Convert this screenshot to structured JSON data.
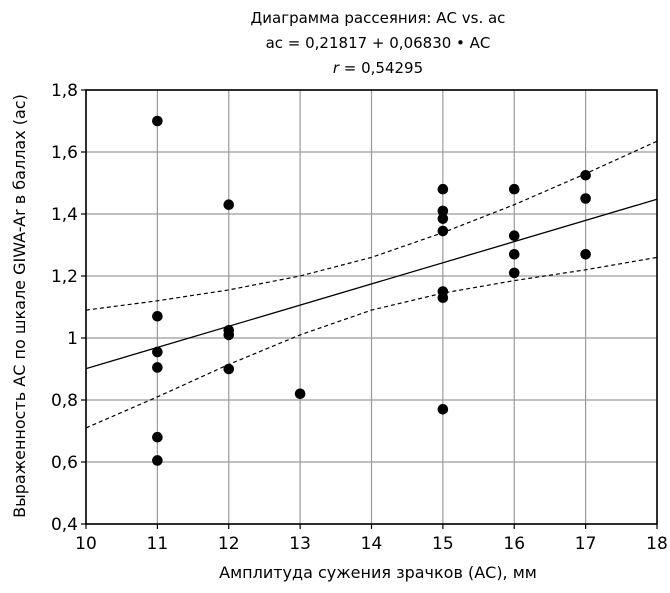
{
  "chart_data": {
    "type": "scatter",
    "title": "Диаграмма рассеяния: АС vs. ас",
    "subtitle_equation": "ас = 0,21817 + 0,06830 • АС",
    "subtitle_r_label": "r",
    "subtitle_r_value": " = 0,54295",
    "xlabel": "Амплитуда сужения зрачков (АС), мм",
    "ylabel": "Выраженность АС по шкале GIWA-Ar в баллах (ас)",
    "xlim": [
      10,
      18
    ],
    "ylim": [
      0.4,
      1.8
    ],
    "x_ticks": [
      10,
      11,
      12,
      13,
      14,
      15,
      16,
      17,
      18
    ],
    "x_tick_labels": [
      "10",
      "11",
      "12",
      "13",
      "14",
      "15",
      "16",
      "17",
      "18"
    ],
    "y_ticks": [
      0.4,
      0.6,
      0.8,
      1.0,
      1.2,
      1.4,
      1.6,
      1.8
    ],
    "y_tick_labels": [
      "0,4",
      "0,6",
      "0,8",
      "1",
      "1,2",
      "1,4",
      "1,6",
      "1,8"
    ],
    "grid": true,
    "points": [
      {
        "x": 11,
        "y": 1.7
      },
      {
        "x": 11,
        "y": 1.07
      },
      {
        "x": 11,
        "y": 0.955
      },
      {
        "x": 11,
        "y": 0.905
      },
      {
        "x": 11,
        "y": 0.68
      },
      {
        "x": 11,
        "y": 0.605
      },
      {
        "x": 12,
        "y": 1.43
      },
      {
        "x": 12,
        "y": 1.025
      },
      {
        "x": 12,
        "y": 1.01
      },
      {
        "x": 12,
        "y": 0.9
      },
      {
        "x": 13,
        "y": 0.82
      },
      {
        "x": 15,
        "y": 1.48
      },
      {
        "x": 15,
        "y": 1.41
      },
      {
        "x": 15,
        "y": 1.385
      },
      {
        "x": 15,
        "y": 1.345
      },
      {
        "x": 15,
        "y": 1.15
      },
      {
        "x": 15,
        "y": 1.13
      },
      {
        "x": 15,
        "y": 0.77
      },
      {
        "x": 16,
        "y": 1.48
      },
      {
        "x": 16,
        "y": 1.33
      },
      {
        "x": 16,
        "y": 1.27
      },
      {
        "x": 16,
        "y": 1.21
      },
      {
        "x": 17,
        "y": 1.525
      },
      {
        "x": 17,
        "y": 1.45
      },
      {
        "x": 17,
        "y": 1.27
      }
    ],
    "regression": {
      "intercept": 0.21817,
      "slope": 0.0683,
      "x_range": [
        10,
        18
      ]
    },
    "confidence_upper": [
      {
        "x": 10,
        "y": 1.09
      },
      {
        "x": 11,
        "y": 1.12
      },
      {
        "x": 12,
        "y": 1.155
      },
      {
        "x": 13,
        "y": 1.2
      },
      {
        "x": 14,
        "y": 1.26
      },
      {
        "x": 15,
        "y": 1.34
      },
      {
        "x": 16,
        "y": 1.43
      },
      {
        "x": 17,
        "y": 1.53
      },
      {
        "x": 18,
        "y": 1.635
      }
    ],
    "confidence_lower": [
      {
        "x": 10,
        "y": 0.71
      },
      {
        "x": 11,
        "y": 0.81
      },
      {
        "x": 12,
        "y": 0.915
      },
      {
        "x": 13,
        "y": 1.01
      },
      {
        "x": 14,
        "y": 1.09
      },
      {
        "x": 15,
        "y": 1.145
      },
      {
        "x": 16,
        "y": 1.185
      },
      {
        "x": 17,
        "y": 1.22
      },
      {
        "x": 18,
        "y": 1.26
      }
    ]
  }
}
